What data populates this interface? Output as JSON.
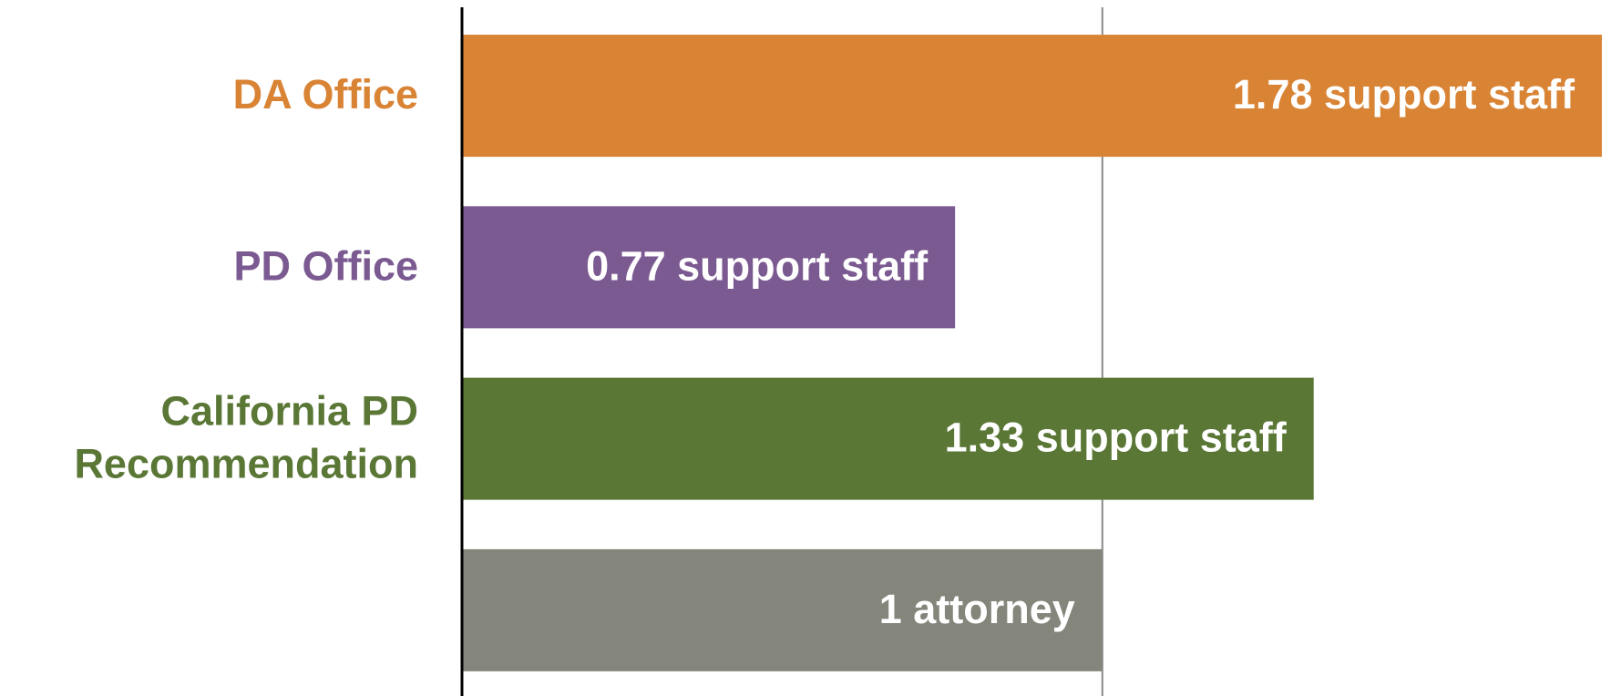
{
  "chart_data": {
    "type": "bar",
    "orientation": "horizontal",
    "categories": [
      "DA Office",
      "PD Office",
      "California PD\nRecommendation",
      null
    ],
    "values": [
      1.78,
      0.77,
      1.33,
      1
    ],
    "value_labels": [
      "1.78 support staff",
      "0.77 support staff",
      "1.33 support staff",
      "1 attorney"
    ],
    "colors": [
      "#d98334",
      "#7b5a91",
      "#5a7736",
      "#84857b"
    ],
    "xlim": [
      0,
      1.79
    ],
    "xticks": [
      0,
      1
    ],
    "grid": true
  }
}
